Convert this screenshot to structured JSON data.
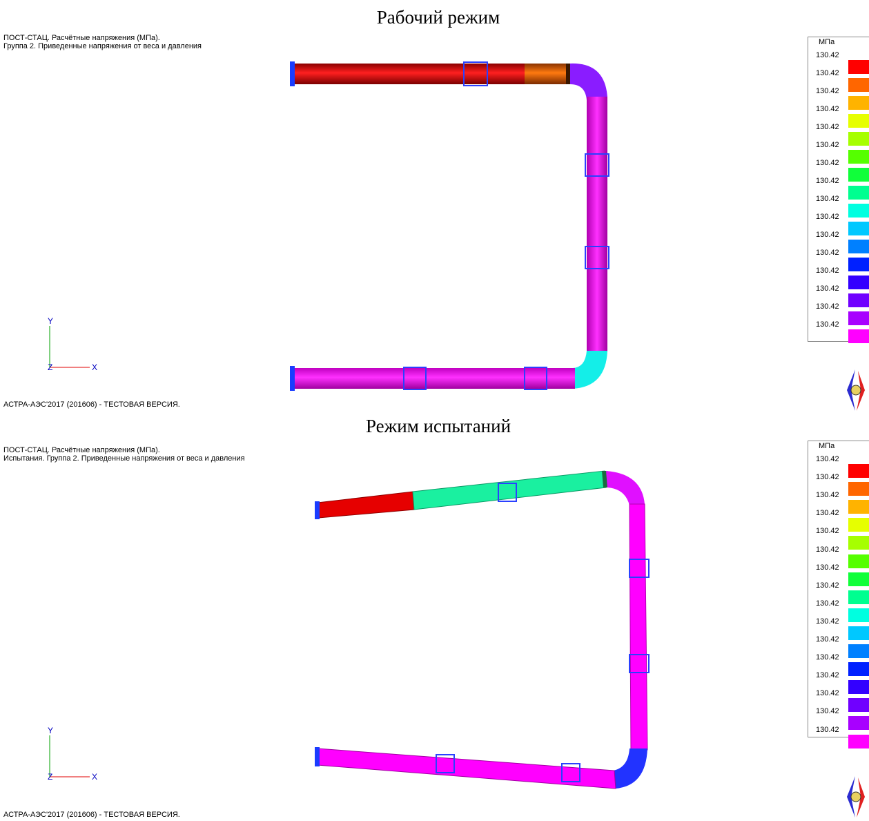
{
  "top_panel": {
    "title": "Рабочий режим",
    "header_line1": "ПОСТ-СТАЦ. Расчётные напряжения (МПа).",
    "header_line2": "Группа 2. Приведенные напряжения от веса и давления",
    "footer": "АСТРА-АЭС'2017 (201606) - ТЕСТОВАЯ ВЕРСИЯ.",
    "legend_unit": "МПа"
  },
  "bottom_panel": {
    "title": "Режим испытаний",
    "header_line1": "ПОСТ-СТАЦ. Расчётные напряжения (МПа).",
    "header_line2": "Испытания. Группа 2. Приведенные напряжения от веса и давления",
    "footer": "АСТРА-АЭС'2017 (201606) - ТЕСТОВАЯ ВЕРСИЯ.",
    "legend_unit": "МПа"
  },
  "axes": {
    "x_label": "X",
    "y_label": "Y",
    "z_label": "Z"
  },
  "legend_values": [
    "130.42",
    "130.42",
    "130.42",
    "130.42",
    "130.42",
    "130.42",
    "130.42",
    "130.42",
    "130.42",
    "130.42",
    "130.42",
    "130.42",
    "130.42",
    "130.42",
    "130.42",
    "130.42"
  ],
  "legend_colors": [
    "#ff0000",
    "#ff6600",
    "#ffb300",
    "#e6ff00",
    "#a6ff00",
    "#55ff00",
    "#10ff3a",
    "#00ff90",
    "#00ffe0",
    "#00c8ff",
    "#0080ff",
    "#0020ff",
    "#3300ff",
    "#7000ff",
    "#a800ff",
    "#ff00ff"
  ],
  "colors": {
    "red": "#ff0000",
    "orange": "#ff6600",
    "magenta": "#ff00ff",
    "violet": "#7a2bff",
    "cyan": "#12f2ee",
    "teal": "#18f2a8",
    "blue": "#0000ff",
    "support": "#1a3cff"
  }
}
